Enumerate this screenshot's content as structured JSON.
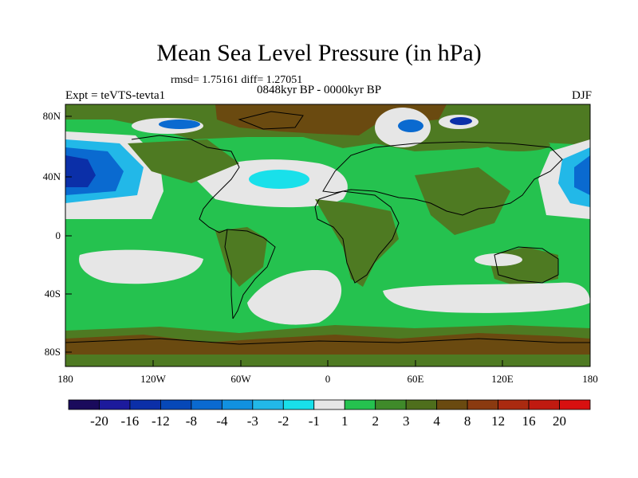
{
  "title": "Mean Sea Level Pressure (in hPa)",
  "stats": "rmsd= 1.75161 diff= 1.27051",
  "period": "0848kyr BP - 0000kyr BP",
  "experiment": "Expt = teVTS-tevta1",
  "season": "DJF",
  "lat_ticks": [
    "80N",
    "40N",
    "0",
    "40S",
    "80S"
  ],
  "lon_ticks": [
    "180",
    "120W",
    "60W",
    "0",
    "60E",
    "120E",
    "180"
  ],
  "colorbar": {
    "labels": [
      "-20",
      "-16",
      "-12",
      "-8",
      "-4",
      "-3",
      "-2",
      "-1",
      "1",
      "2",
      "3",
      "4",
      "8",
      "12",
      "16",
      "20"
    ],
    "colors": [
      "#1a0a5c",
      "#1c1a9c",
      "#0b2fa8",
      "#0648b8",
      "#0a6ad0",
      "#1191e0",
      "#22b8e8",
      "#19e0ea",
      "#e6e6e6",
      "#25c24f",
      "#3f8a2a",
      "#4e6e1c",
      "#6a4a10",
      "#8a3a10",
      "#aa2a10",
      "#c01a10",
      "#d81010"
    ]
  },
  "palette": {
    "bg_green": "#25c24f",
    "dark_green": "#4e7a22",
    "brown": "#6a4a10",
    "light_gray": "#e6e6e6",
    "cyan": "#19e0ea",
    "light_blue": "#22b8e8",
    "mid_blue": "#0a6ad0",
    "dark_blue": "#0b2fa8"
  }
}
